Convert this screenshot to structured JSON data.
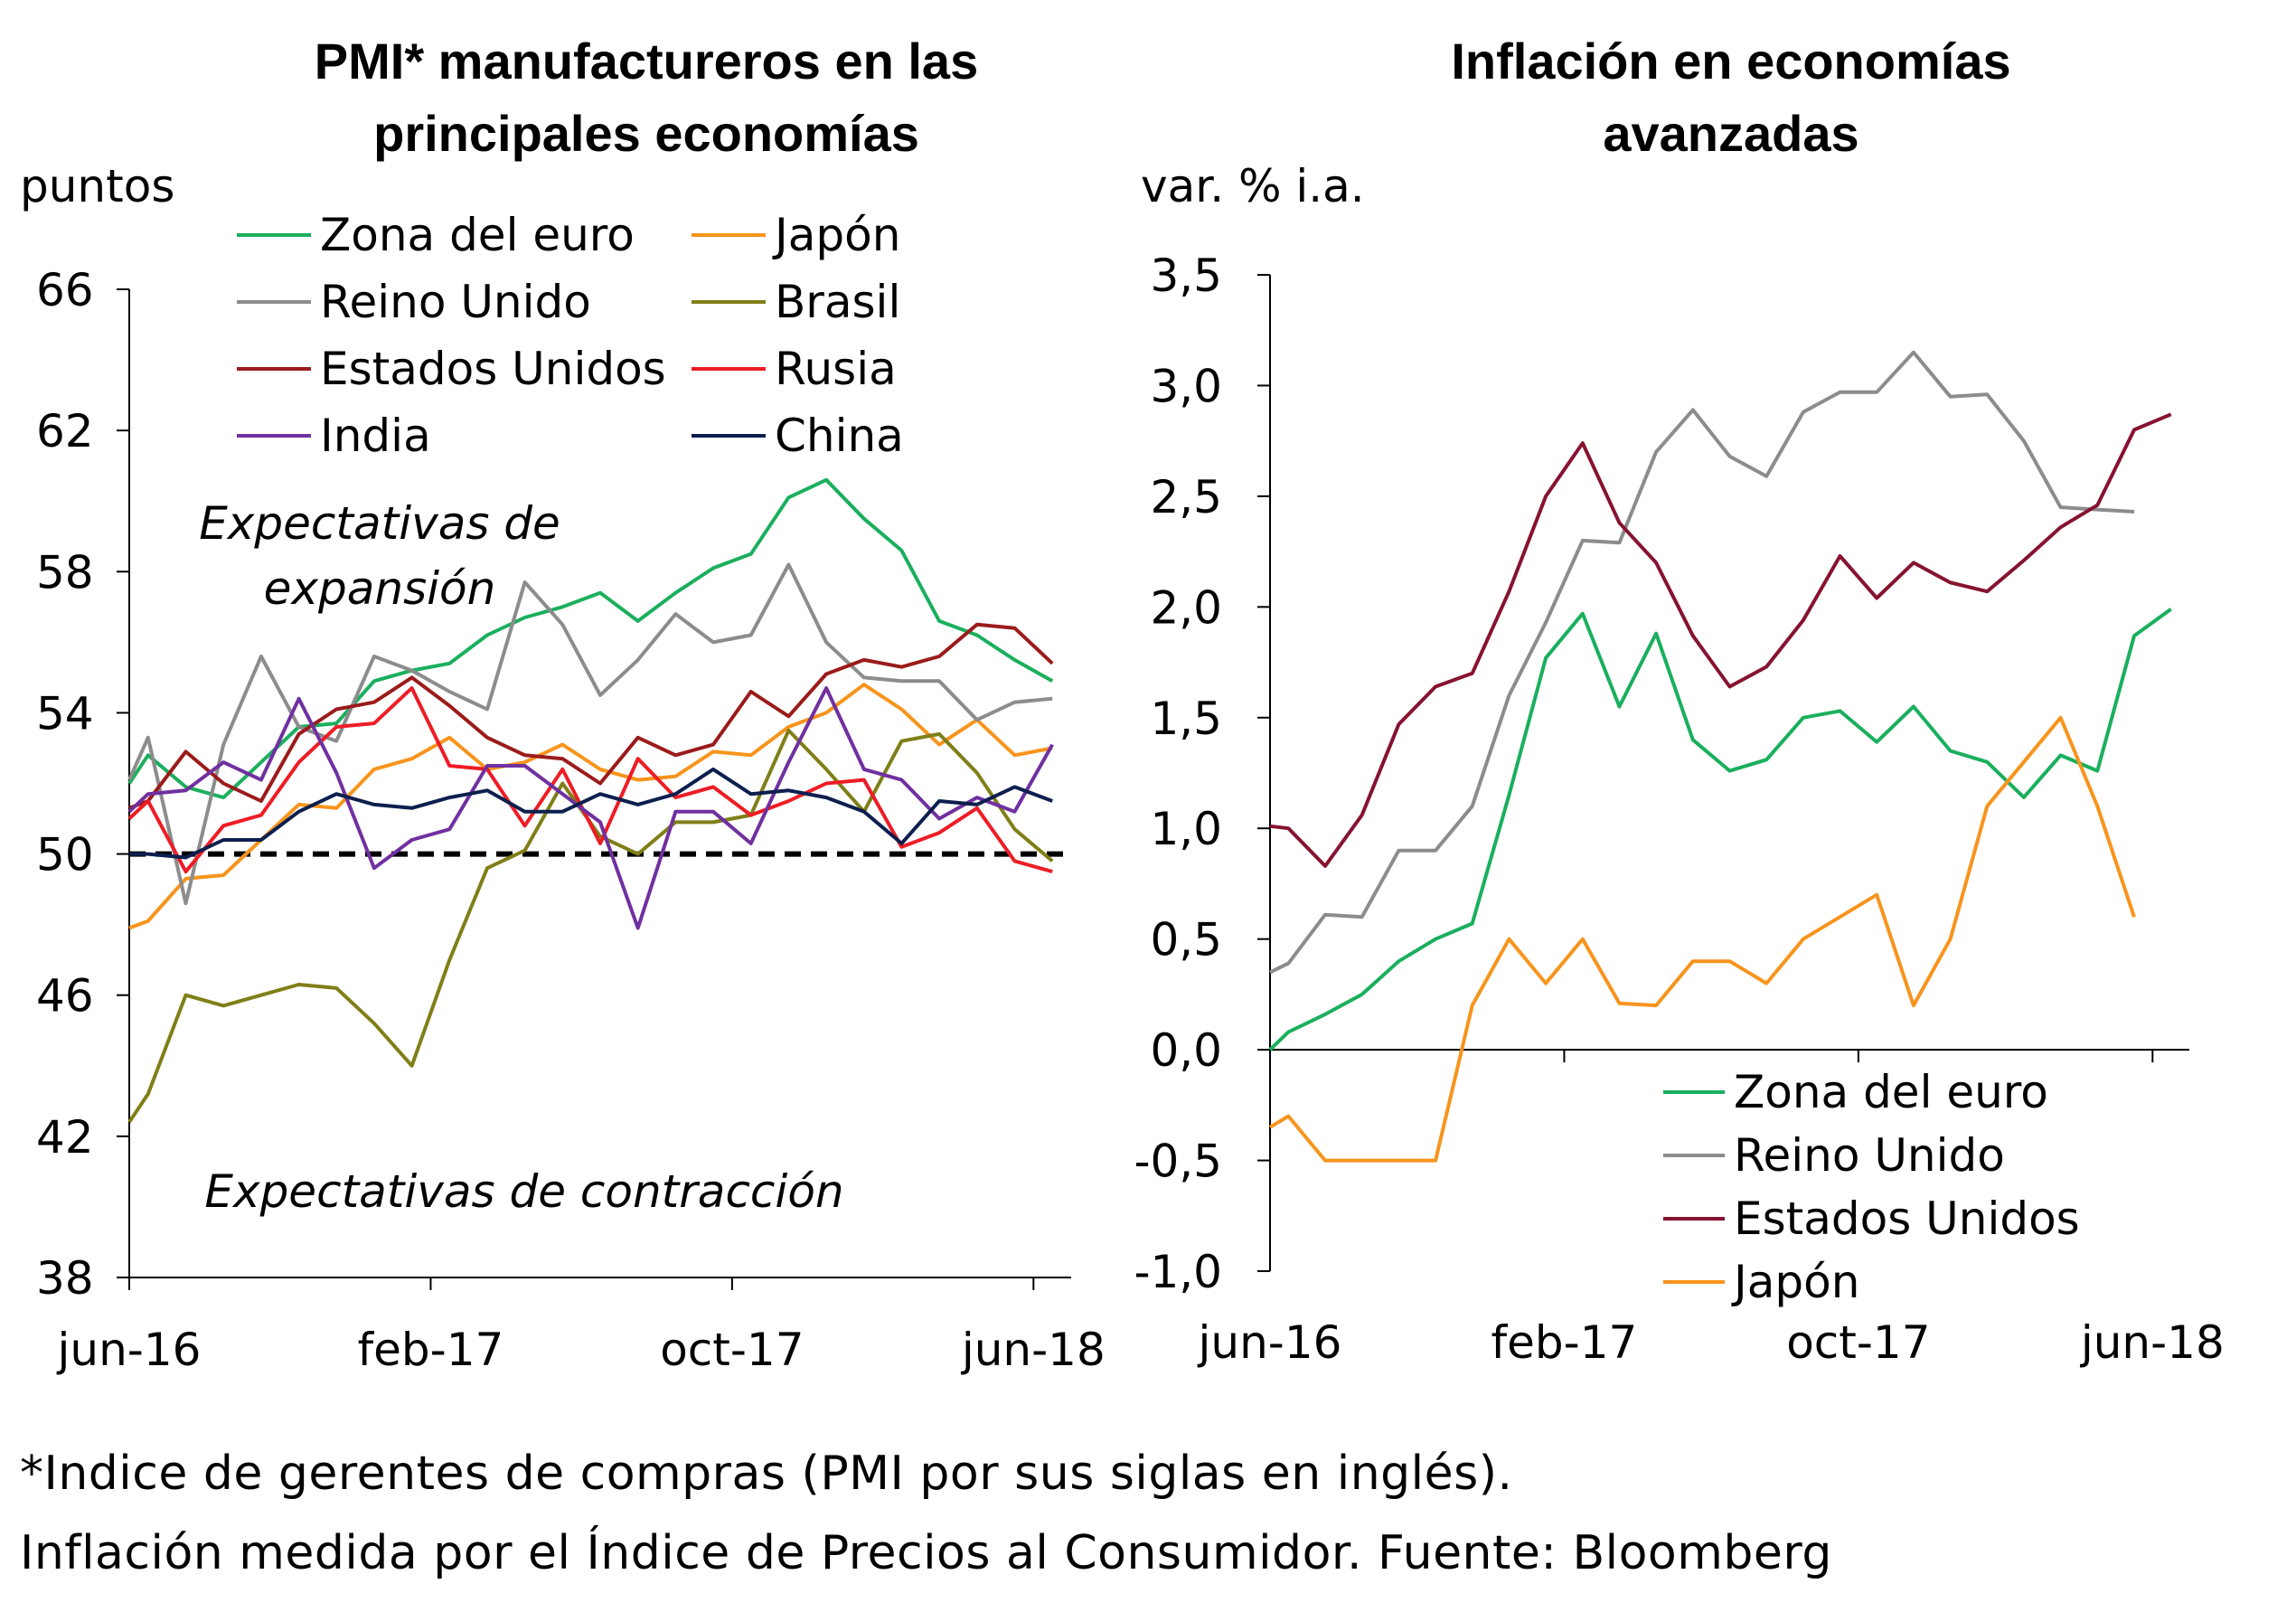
{
  "footnotes": {
    "line1": "*Indice de gerentes de compras (PMI por sus siglas en inglés).",
    "line2": "Inflación medida por el Índice de Precios al Consumidor. Fuente: Bloomberg"
  },
  "chart_data": [
    {
      "type": "line",
      "title_line1": "PMI* manufactureros en las",
      "title_line2": "principales economías",
      "ylabel": "puntos",
      "ylim": [
        38,
        66
      ],
      "yticks": [
        38,
        42,
        46,
        50,
        54,
        58,
        62,
        66
      ],
      "ytick_labels": [
        "38",
        "42",
        "46",
        "50",
        "54",
        "58",
        "62",
        "66"
      ],
      "x_labels": [
        "jun-16",
        "feb-17",
        "oct-17",
        "jun-18"
      ],
      "x_label_index": [
        0,
        8,
        16,
        24
      ],
      "reference_line": 50,
      "annotations": {
        "expansion_line1": "Expectativas de",
        "expansion_line2": "expansión",
        "contraction": "Expectativas de contracción"
      },
      "series": [
        {
          "name": "Zona del euro",
          "color": "#1aaf5d",
          "x": [
            0,
            0.5,
            1.5,
            2.5,
            3.5,
            4.5,
            5.5,
            6.5,
            7.5,
            8.5,
            9.5,
            10.5,
            11.5,
            12.5,
            13.5,
            14.5,
            15.5,
            16.5,
            17.5,
            18.5,
            19.5,
            20.5,
            21.5,
            22.5,
            23.5,
            24.5
          ],
          "values": [
            52.0,
            52.8,
            51.9,
            51.6,
            52.6,
            53.6,
            53.7,
            54.9,
            55.2,
            55.4,
            56.2,
            56.7,
            57.0,
            57.4,
            56.6,
            57.4,
            58.1,
            58.5,
            60.1,
            60.6,
            59.5,
            58.6,
            56.6,
            56.2,
            55.5,
            54.9
          ]
        },
        {
          "name": "Japón",
          "color": "#f7941d",
          "x": [
            0,
            0.5,
            1.5,
            2.5,
            3.5,
            4.5,
            5.5,
            6.5,
            7.5,
            8.5,
            9.5,
            10.5,
            11.5,
            12.5,
            13.5,
            14.5,
            15.5,
            16.5,
            17.5,
            18.5,
            19.5,
            20.5,
            21.5,
            22.5,
            23.5,
            24.5
          ],
          "values": [
            47.9,
            48.1,
            49.3,
            49.4,
            50.4,
            51.4,
            51.3,
            52.4,
            52.7,
            53.3,
            52.4,
            52.6,
            53.1,
            52.4,
            52.1,
            52.2,
            52.9,
            52.8,
            53.6,
            54.0,
            54.8,
            54.1,
            53.1,
            53.8,
            52.8,
            53.0
          ]
        },
        {
          "name": "Reino Unido",
          "color": "#8c8c8c",
          "x": [
            0,
            0.5,
            1.5,
            2.5,
            3.5,
            4.5,
            5.5,
            6.5,
            7.5,
            8.5,
            9.5,
            10.5,
            11.5,
            12.5,
            13.5,
            14.5,
            15.5,
            16.5,
            17.5,
            18.5,
            19.5,
            20.5,
            21.5,
            22.5,
            23.5,
            24.5
          ],
          "values": [
            52.1,
            53.3,
            48.6,
            53.1,
            55.6,
            53.6,
            53.2,
            55.6,
            55.2,
            54.6,
            54.1,
            57.7,
            56.5,
            54.5,
            55.5,
            56.8,
            56.0,
            56.2,
            58.2,
            56.0,
            55.0,
            54.9,
            54.9,
            53.8,
            54.3,
            54.4
          ]
        },
        {
          "name": "Brasil",
          "color": "#7f7f18",
          "x": [
            0,
            0.5,
            1.5,
            2.5,
            3.5,
            4.5,
            5.5,
            6.5,
            7.5,
            8.5,
            9.5,
            10.5,
            11.5,
            12.5,
            13.5,
            14.5,
            15.5,
            16.5,
            17.5,
            18.5,
            19.5,
            20.5,
            21.5,
            22.5,
            23.5,
            24.5
          ],
          "values": [
            42.4,
            43.2,
            46.0,
            45.7,
            46.0,
            46.3,
            46.2,
            45.2,
            44.0,
            47.0,
            49.6,
            50.1,
            52.0,
            50.5,
            50.0,
            50.9,
            50.9,
            51.1,
            53.5,
            52.4,
            51.2,
            53.2,
            53.4,
            52.3,
            50.7,
            49.8
          ]
        },
        {
          "name": "Estados Unidos",
          "color": "#9b1b1b",
          "x": [
            0,
            0.5,
            1.5,
            2.5,
            3.5,
            4.5,
            5.5,
            6.5,
            7.5,
            8.5,
            9.5,
            10.5,
            11.5,
            12.5,
            13.5,
            14.5,
            15.5,
            16.5,
            17.5,
            18.5,
            19.5,
            20.5,
            21.5,
            22.5,
            23.5,
            24.5
          ],
          "values": [
            51.3,
            51.5,
            52.9,
            52.0,
            51.5,
            53.4,
            54.1,
            54.3,
            55.0,
            54.2,
            53.3,
            52.8,
            52.7,
            52.0,
            53.3,
            52.8,
            53.1,
            54.6,
            53.9,
            55.1,
            55.5,
            55.3,
            55.6,
            56.5,
            56.4,
            55.4
          ]
        },
        {
          "name": "Rusia",
          "color": "#ee1c25",
          "x": [
            0,
            0.5,
            1.5,
            2.5,
            3.5,
            4.5,
            5.5,
            6.5,
            7.5,
            8.5,
            9.5,
            10.5,
            11.5,
            12.5,
            13.5,
            14.5,
            15.5,
            16.5,
            17.5,
            18.5,
            19.5,
            20.5,
            21.5,
            22.5,
            23.5,
            24.5
          ],
          "values": [
            51.0,
            51.5,
            49.5,
            50.8,
            51.1,
            52.6,
            53.6,
            53.7,
            54.7,
            52.5,
            52.4,
            50.8,
            52.4,
            50.3,
            52.7,
            51.6,
            51.9,
            51.1,
            51.5,
            52.0,
            52.1,
            50.2,
            50.6,
            51.3,
            49.8,
            49.5
          ]
        },
        {
          "name": "India",
          "color": "#7030a0",
          "x": [
            0,
            0.5,
            1.5,
            2.5,
            3.5,
            4.5,
            5.5,
            6.5,
            7.5,
            8.5,
            9.5,
            10.5,
            11.5,
            12.5,
            13.5,
            14.5,
            15.5,
            16.5,
            17.5,
            18.5,
            19.5,
            20.5,
            21.5,
            22.5,
            23.5,
            24.5
          ],
          "values": [
            51.2,
            51.7,
            51.8,
            52.6,
            52.1,
            54.4,
            52.3,
            49.6,
            50.4,
            50.7,
            52.5,
            52.5,
            51.7,
            50.9,
            47.9,
            51.2,
            51.2,
            50.3,
            52.6,
            54.7,
            52.4,
            52.1,
            51.0,
            51.6,
            51.2,
            53.1
          ]
        },
        {
          "name": "China",
          "color": "#0d1f4e",
          "x": [
            0,
            0.5,
            1.5,
            2.5,
            3.5,
            4.5,
            5.5,
            6.5,
            7.5,
            8.5,
            9.5,
            10.5,
            11.5,
            12.5,
            13.5,
            14.5,
            15.5,
            16.5,
            17.5,
            18.5,
            19.5,
            20.5,
            21.5,
            22.5,
            23.5,
            24.5
          ],
          "values": [
            50.0,
            50.0,
            49.9,
            50.4,
            50.4,
            51.2,
            51.7,
            51.4,
            51.3,
            51.6,
            51.8,
            51.2,
            51.2,
            51.7,
            51.4,
            51.7,
            52.4,
            51.7,
            51.8,
            51.6,
            51.2,
            50.3,
            51.5,
            51.4,
            51.9,
            51.5
          ]
        }
      ],
      "legend": [
        "Zona del euro",
        "Japón",
        "Reino Unido",
        "Brasil",
        "Estados Unidos",
        "Rusia",
        "India",
        "China"
      ]
    },
    {
      "type": "line",
      "title_line1": "Inflación en economías",
      "title_line2": "avanzadas",
      "ylabel": "var. % i.a.",
      "ylim": [
        -1.0,
        3.5
      ],
      "yticks": [
        -1.0,
        -0.5,
        0.0,
        0.5,
        1.0,
        1.5,
        2.0,
        2.5,
        3.0,
        3.5
      ],
      "ytick_labels": [
        "-1,0",
        "-0,5",
        "0,0",
        "0,5",
        "1,0",
        "1,5",
        "2,0",
        "2,5",
        "3,0",
        "3,5"
      ],
      "x_labels": [
        "jun-16",
        "feb-17",
        "oct-17",
        "jun-18"
      ],
      "x_label_index": [
        0,
        8,
        16,
        24
      ],
      "series": [
        {
          "name": "Zona del euro",
          "color": "#1aaf5d",
          "x": [
            0,
            0.5,
            1.5,
            2.5,
            3.5,
            4.5,
            5.5,
            6.5,
            7.5,
            8.5,
            9.5,
            10.5,
            11.5,
            12.5,
            13.5,
            14.5,
            15.5,
            16.5,
            17.5,
            18.5,
            19.5,
            20.5,
            21.5,
            22.5,
            23.5,
            24.5
          ],
          "values": [
            0.0,
            0.08,
            0.16,
            0.25,
            0.4,
            0.5,
            0.57,
            1.15,
            1.77,
            1.97,
            1.55,
            1.88,
            1.4,
            1.26,
            1.31,
            1.5,
            1.53,
            1.39,
            1.55,
            1.35,
            1.3,
            1.14,
            1.33,
            1.26,
            1.87,
            1.99
          ]
        },
        {
          "name": "Reino Unido",
          "color": "#8c8c8c",
          "x": [
            0,
            0.5,
            1.5,
            2.5,
            3.5,
            4.5,
            5.5,
            6.5,
            7.5,
            8.5,
            9.5,
            10.5,
            11.5,
            12.5,
            13.5,
            14.5,
            15.5,
            16.5,
            17.5,
            18.5,
            19.5,
            20.5,
            21.5,
            22.5,
            23.5
          ],
          "values": [
            0.35,
            0.39,
            0.61,
            0.6,
            0.9,
            0.9,
            1.1,
            1.6,
            1.93,
            2.3,
            2.29,
            2.7,
            2.89,
            2.68,
            2.59,
            2.88,
            2.97,
            2.97,
            3.15,
            2.95,
            2.96,
            2.75,
            2.45,
            2.44,
            2.43
          ]
        },
        {
          "name": "Estados Unidos",
          "color": "#861330",
          "x": [
            0,
            0.5,
            1.5,
            2.5,
            3.5,
            4.5,
            5.5,
            6.5,
            7.5,
            8.5,
            9.5,
            10.5,
            11.5,
            12.5,
            13.5,
            14.5,
            15.5,
            16.5,
            17.5,
            18.5,
            19.5,
            20.5,
            21.5,
            22.5,
            23.5,
            24.5
          ],
          "values": [
            1.01,
            1.0,
            0.83,
            1.06,
            1.47,
            1.64,
            1.7,
            2.07,
            2.5,
            2.74,
            2.38,
            2.2,
            1.87,
            1.64,
            1.73,
            1.94,
            2.23,
            2.04,
            2.2,
            2.11,
            2.07,
            2.21,
            2.36,
            2.46,
            2.8,
            2.87
          ]
        },
        {
          "name": "Japón",
          "color": "#f7941d",
          "x": [
            0,
            0.5,
            1.5,
            2.5,
            3.5,
            4.5,
            5.5,
            6.5,
            7.5,
            8.5,
            9.5,
            10.5,
            11.5,
            12.5,
            13.5,
            14.5,
            15.5,
            16.5,
            17.5,
            18.5,
            19.5,
            20.5,
            21.5,
            22.5,
            23.5
          ],
          "values": [
            -0.35,
            -0.3,
            -0.5,
            -0.5,
            -0.5,
            -0.5,
            0.2,
            0.5,
            0.3,
            0.5,
            0.21,
            0.2,
            0.4,
            0.4,
            0.3,
            0.5,
            0.6,
            0.7,
            0.2,
            0.5,
            1.1,
            1.3,
            1.5,
            1.1,
            0.6
          ]
        }
      ],
      "legend": [
        "Zona del euro",
        "Reino Unido",
        "Estados Unidos",
        "Japón"
      ]
    }
  ]
}
